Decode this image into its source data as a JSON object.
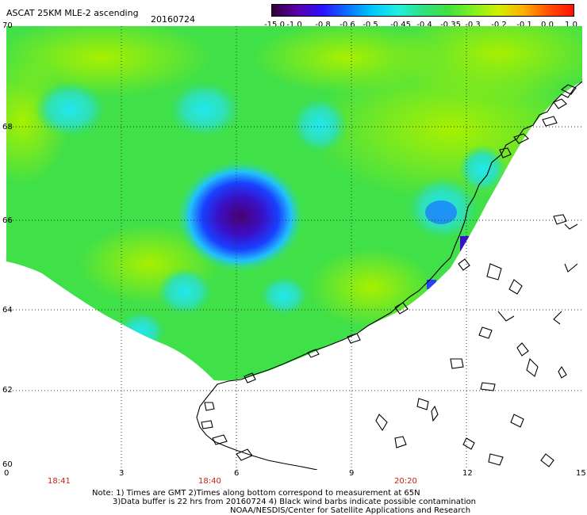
{
  "header": {
    "title": "ASCAT 25KM MLE-2 ascending",
    "date": "20160724"
  },
  "colorbar": {
    "labels": [
      "-15.0",
      "-1.0",
      "-0.8",
      "-0.6",
      "-0.5",
      "-0.45",
      "-0.4",
      "-0.35",
      "-0.3",
      "-0.2",
      "-0.1",
      "0.0",
      "1.0"
    ],
    "colors": [
      "#30003a",
      "#5a00a8",
      "#2a10ff",
      "#0a70ff",
      "#00c8ff",
      "#20f0e0",
      "#30e080",
      "#40e040",
      "#80f020",
      "#d0f000",
      "#ffb000",
      "#ff5000",
      "#ff1000"
    ]
  },
  "axes": {
    "y_ticks": [
      "70",
      "68",
      "66",
      "64",
      "62",
      "60"
    ],
    "x_ticks": [
      "0",
      "3",
      "6",
      "9",
      "12",
      "15"
    ],
    "time_labels": [
      "18:41",
      "18:40",
      "20:20"
    ]
  },
  "notes": [
    "Note: 1) Times are GMT 2)Times along bottom correspond to measurement at 65N",
    "3)Data buffer is 22 hrs from 20160724 4) Black wind barbs indicate possible contamination",
    "NOAA/NESDIS/Center for Satellite Applications and Research"
  ]
}
